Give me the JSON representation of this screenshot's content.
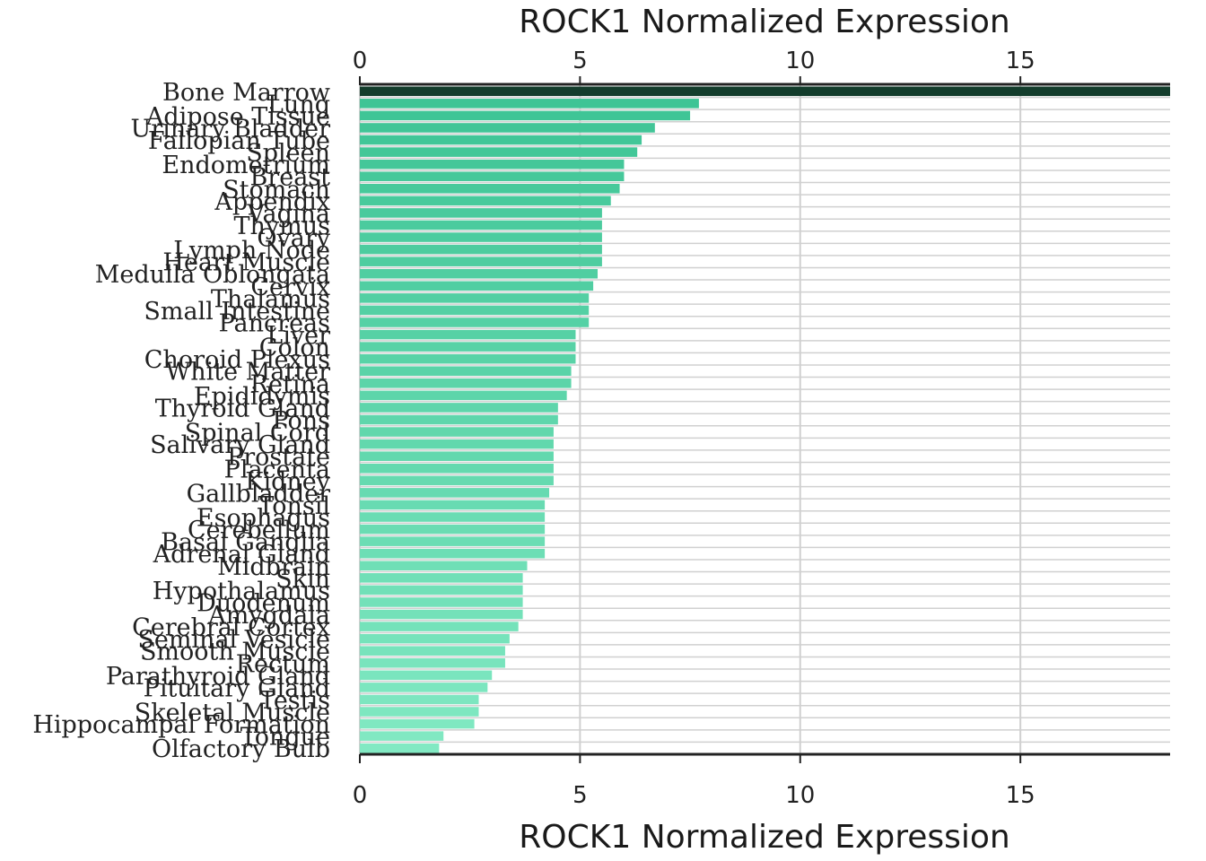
{
  "chart_data": {
    "type": "bar",
    "orientation": "horizontal",
    "title": "",
    "xlabel_top": "ROCK1 Normalized Expression",
    "xlabel_bottom": "ROCK1 Normalized Expression",
    "xlim": [
      0,
      18.4
    ],
    "xticks": [
      0,
      5,
      10,
      15
    ],
    "grid": true,
    "categories": [
      "Bone Marrow",
      "Lung",
      "Adipose Tissue",
      "Urinary Bladder",
      "Fallopian Tube",
      "Spleen",
      "Endometrium",
      "Breast",
      "Stomach",
      "Appendix",
      "Vagina",
      "Thymus",
      "Ovary",
      "Lymph Node",
      "Heart Muscle",
      "Medulla Oblongata",
      "Cervix",
      "Thalamus",
      "Small Intestine",
      "Pancreas",
      "Liver",
      "Colon",
      "Choroid Plexus",
      "White Matter",
      "Retina",
      "Epididymis",
      "Thyroid Gland",
      "Pons",
      "Spinal Cord",
      "Salivary Gland",
      "Prostate",
      "Placenta",
      "Kidney",
      "Gallbladder",
      "Tonsil",
      "Esophagus",
      "Cerebellum",
      "Basal Ganglia",
      "Adrenal Gland",
      "Midbrain",
      "Skin",
      "Hypothalamus",
      "Duodenum",
      "Amygdala",
      "Cerebral Cortex",
      "Seminal Vesicle",
      "Smooth Muscle",
      "Rectum",
      "Parathyroid Gland",
      "Pituitary Gland",
      "Testis",
      "Skeletal Muscle",
      "Hippocampal Formation",
      "Tongue",
      "Olfactory Bulb"
    ],
    "values": [
      18.4,
      7.7,
      7.5,
      6.7,
      6.4,
      6.3,
      6.0,
      6.0,
      5.9,
      5.7,
      5.5,
      5.5,
      5.5,
      5.5,
      5.5,
      5.4,
      5.3,
      5.2,
      5.2,
      5.2,
      4.9,
      4.9,
      4.9,
      4.8,
      4.8,
      4.7,
      4.5,
      4.5,
      4.4,
      4.4,
      4.4,
      4.4,
      4.4,
      4.3,
      4.2,
      4.2,
      4.2,
      4.2,
      4.2,
      3.8,
      3.7,
      3.7,
      3.7,
      3.7,
      3.6,
      3.4,
      3.3,
      3.3,
      3.0,
      2.9,
      2.7,
      2.7,
      2.6,
      1.9,
      1.8
    ],
    "colors": {
      "highlight": "#133d2c",
      "bar_start": "#3ec495",
      "bar_end": "#82e9c3",
      "grid": "#d0d0d0",
      "axis": "#222222"
    }
  }
}
